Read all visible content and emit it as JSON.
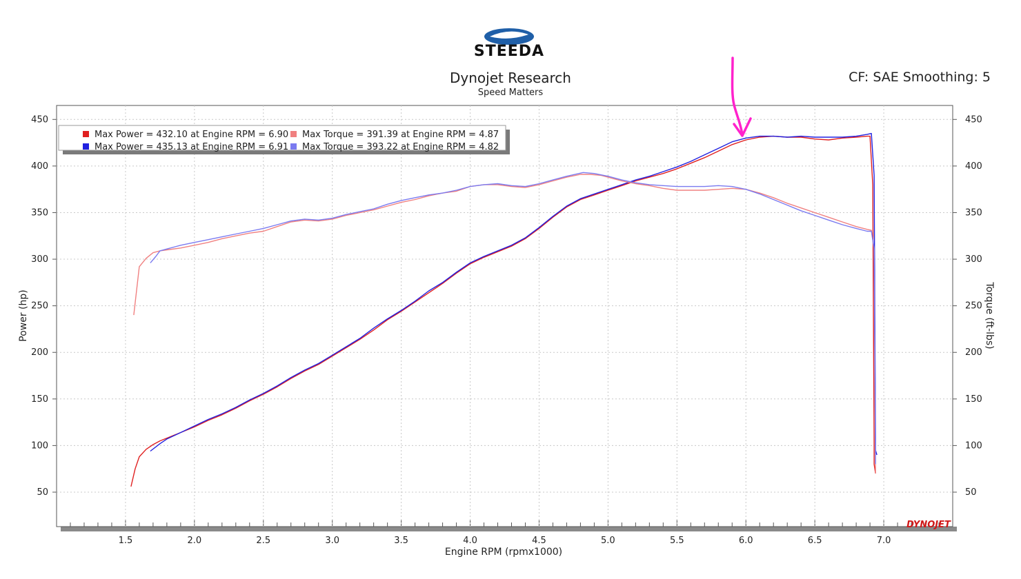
{
  "header": {
    "logo_text": "STEEDA",
    "title": "Dynojet Research",
    "subtitle": "Speed Matters",
    "cf_info": "CF: SAE Smoothing: 5",
    "watermark": "DYNOJET"
  },
  "colors": {
    "power_run1": "#e02020",
    "power_run2": "#2020e0",
    "torque_run1": "#f08080",
    "torque_run2": "#7a7af0",
    "annotation": "#ff22cc",
    "logo_blue": "#1f5fa8"
  },
  "legend": [
    {
      "swatch": "power_run1",
      "label": "Max Power = 432.10 at Engine RPM = 6.90"
    },
    {
      "swatch": "power_run2",
      "label": "Max Power = 435.13 at Engine RPM = 6.91"
    },
    {
      "swatch": "torque_run1",
      "label": "Max Torque = 391.39 at Engine RPM = 4.87"
    },
    {
      "swatch": "torque_run2",
      "label": "Max Torque = 393.22 at Engine RPM = 4.82"
    }
  ],
  "annotation": {
    "type": "hand-drawn-arrow",
    "points_at_x": 6.0
  },
  "chart_data": {
    "type": "line",
    "title": "Dynojet Research",
    "subtitle": "Speed Matters",
    "xlabel": "Engine RPM (rpmx1000)",
    "ylabel_left": "Power (hp)",
    "ylabel_right": "Torque (ft-lbs)",
    "xlim": [
      1.0,
      7.5
    ],
    "ylim": [
      13,
      465
    ],
    "x_ticks": [
      1.5,
      2.0,
      2.5,
      3.0,
      3.5,
      4.0,
      4.5,
      5.0,
      5.5,
      6.0,
      6.5,
      7.0
    ],
    "x_tick_labels": [
      "1.5",
      "2.0",
      "2.5",
      "3.0",
      "3.5",
      "4.0",
      "4.5",
      "5.0",
      "5.5",
      "6.0",
      "6.5",
      "7.0"
    ],
    "y_ticks": [
      50,
      100,
      150,
      200,
      250,
      300,
      350,
      400,
      450
    ],
    "y_tick_labels": [
      "50",
      "100",
      "150",
      "200",
      "250",
      "300",
      "350",
      "400",
      "450"
    ],
    "grid": true,
    "legend_position": "top-left",
    "series": [
      {
        "name": "Max Power = 432.10 at Engine RPM = 6.90",
        "color_key": "power_run1",
        "x": [
          1.54,
          1.57,
          1.6,
          1.65,
          1.7,
          1.75,
          1.8,
          1.9,
          2.0,
          2.1,
          2.2,
          2.3,
          2.4,
          2.5,
          2.6,
          2.7,
          2.8,
          2.9,
          3.0,
          3.1,
          3.2,
          3.3,
          3.4,
          3.5,
          3.6,
          3.7,
          3.8,
          3.9,
          4.0,
          4.1,
          4.2,
          4.3,
          4.4,
          4.5,
          4.6,
          4.7,
          4.8,
          4.9,
          5.0,
          5.1,
          5.2,
          5.3,
          5.4,
          5.5,
          5.6,
          5.7,
          5.8,
          5.9,
          6.0,
          6.1,
          6.2,
          6.3,
          6.4,
          6.5,
          6.6,
          6.7,
          6.8,
          6.88,
          6.9,
          6.92,
          6.93,
          6.93,
          6.94
        ],
        "y": [
          56,
          75,
          88,
          96,
          101,
          105,
          108,
          114,
          120,
          127,
          133,
          140,
          148,
          155,
          163,
          172,
          180,
          187,
          196,
          205,
          214,
          224,
          235,
          244,
          254,
          264,
          274,
          285,
          295,
          302,
          308,
          314,
          322,
          333,
          345,
          356,
          364,
          369,
          374,
          379,
          384,
          388,
          392,
          397,
          403,
          409,
          416,
          423,
          428,
          431,
          432,
          431,
          431,
          429,
          428,
          430,
          431,
          432,
          432,
          380,
          100,
          80,
          70
        ]
      },
      {
        "name": "Max Power = 435.13 at Engine RPM = 6.91",
        "color_key": "power_run2",
        "x": [
          1.68,
          1.75,
          1.8,
          1.9,
          2.0,
          2.1,
          2.2,
          2.3,
          2.4,
          2.5,
          2.6,
          2.7,
          2.8,
          2.9,
          3.0,
          3.1,
          3.2,
          3.3,
          3.4,
          3.5,
          3.6,
          3.7,
          3.8,
          3.9,
          4.0,
          4.1,
          4.2,
          4.3,
          4.4,
          4.5,
          4.6,
          4.7,
          4.8,
          4.9,
          5.0,
          5.1,
          5.2,
          5.3,
          5.4,
          5.5,
          5.6,
          5.7,
          5.8,
          5.9,
          6.0,
          6.1,
          6.2,
          6.3,
          6.4,
          6.5,
          6.6,
          6.7,
          6.8,
          6.88,
          6.91,
          6.93,
          6.94,
          6.94,
          6.95
        ],
        "y": [
          94,
          102,
          107,
          114,
          121,
          128,
          134,
          141,
          149,
          156,
          164,
          173,
          181,
          188,
          197,
          206,
          215,
          226,
          236,
          245,
          255,
          266,
          275,
          286,
          296,
          303,
          309,
          315,
          323,
          334,
          346,
          357,
          365,
          370,
          375,
          380,
          385,
          389,
          394,
          399,
          405,
          412,
          419,
          426,
          430,
          432,
          432,
          431,
          432,
          431,
          431,
          431,
          432,
          434,
          435,
          390,
          110,
          95,
          90
        ]
      },
      {
        "name": "Max Torque = 391.39 at Engine RPM = 4.87",
        "color_key": "torque_run1",
        "x": [
          1.56,
          1.6,
          1.65,
          1.7,
          1.75,
          1.8,
          1.9,
          2.0,
          2.1,
          2.2,
          2.3,
          2.4,
          2.5,
          2.6,
          2.7,
          2.8,
          2.9,
          3.0,
          3.1,
          3.2,
          3.3,
          3.4,
          3.5,
          3.6,
          3.7,
          3.8,
          3.9,
          4.0,
          4.1,
          4.2,
          4.3,
          4.4,
          4.5,
          4.6,
          4.7,
          4.8,
          4.87,
          4.95,
          5.0,
          5.1,
          5.2,
          5.3,
          5.4,
          5.5,
          5.6,
          5.7,
          5.8,
          5.9,
          6.0,
          6.1,
          6.2,
          6.3,
          6.4,
          6.5,
          6.6,
          6.7,
          6.8,
          6.88,
          6.91,
          6.93,
          6.94
        ],
        "y": [
          240,
          292,
          301,
          307,
          309,
          310,
          312,
          315,
          318,
          322,
          325,
          328,
          330,
          335,
          340,
          342,
          341,
          343,
          347,
          350,
          353,
          357,
          361,
          364,
          368,
          371,
          373,
          378,
          380,
          380,
          378,
          377,
          380,
          384,
          388,
          391,
          391,
          390,
          388,
          384,
          381,
          379,
          376,
          374,
          374,
          374,
          375,
          376,
          375,
          371,
          366,
          360,
          355,
          350,
          345,
          340,
          335,
          332,
          331,
          310,
          70
        ]
      },
      {
        "name": "Max Torque = 393.22 at Engine RPM = 4.82",
        "color_key": "torque_run2",
        "x": [
          1.68,
          1.72,
          1.75,
          1.8,
          1.9,
          2.0,
          2.1,
          2.2,
          2.3,
          2.4,
          2.5,
          2.6,
          2.7,
          2.8,
          2.9,
          3.0,
          3.1,
          3.2,
          3.3,
          3.4,
          3.5,
          3.6,
          3.7,
          3.8,
          3.9,
          4.0,
          4.1,
          4.2,
          4.3,
          4.4,
          4.5,
          4.6,
          4.7,
          4.82,
          4.9,
          5.0,
          5.1,
          5.2,
          5.3,
          5.4,
          5.5,
          5.6,
          5.7,
          5.8,
          5.9,
          6.0,
          6.1,
          6.2,
          6.3,
          6.4,
          6.5,
          6.6,
          6.7,
          6.8,
          6.88,
          6.91,
          6.93,
          6.94
        ],
        "y": [
          296,
          303,
          309,
          311,
          315,
          318,
          321,
          324,
          327,
          330,
          333,
          337,
          341,
          343,
          342,
          344,
          348,
          351,
          354,
          359,
          363,
          366,
          369,
          371,
          374,
          378,
          380,
          381,
          379,
          378,
          381,
          385,
          389,
          393,
          392,
          389,
          385,
          382,
          380,
          379,
          378,
          378,
          378,
          379,
          378,
          375,
          370,
          364,
          358,
          352,
          347,
          342,
          337,
          333,
          330,
          330,
          312,
          80
        ]
      }
    ]
  }
}
